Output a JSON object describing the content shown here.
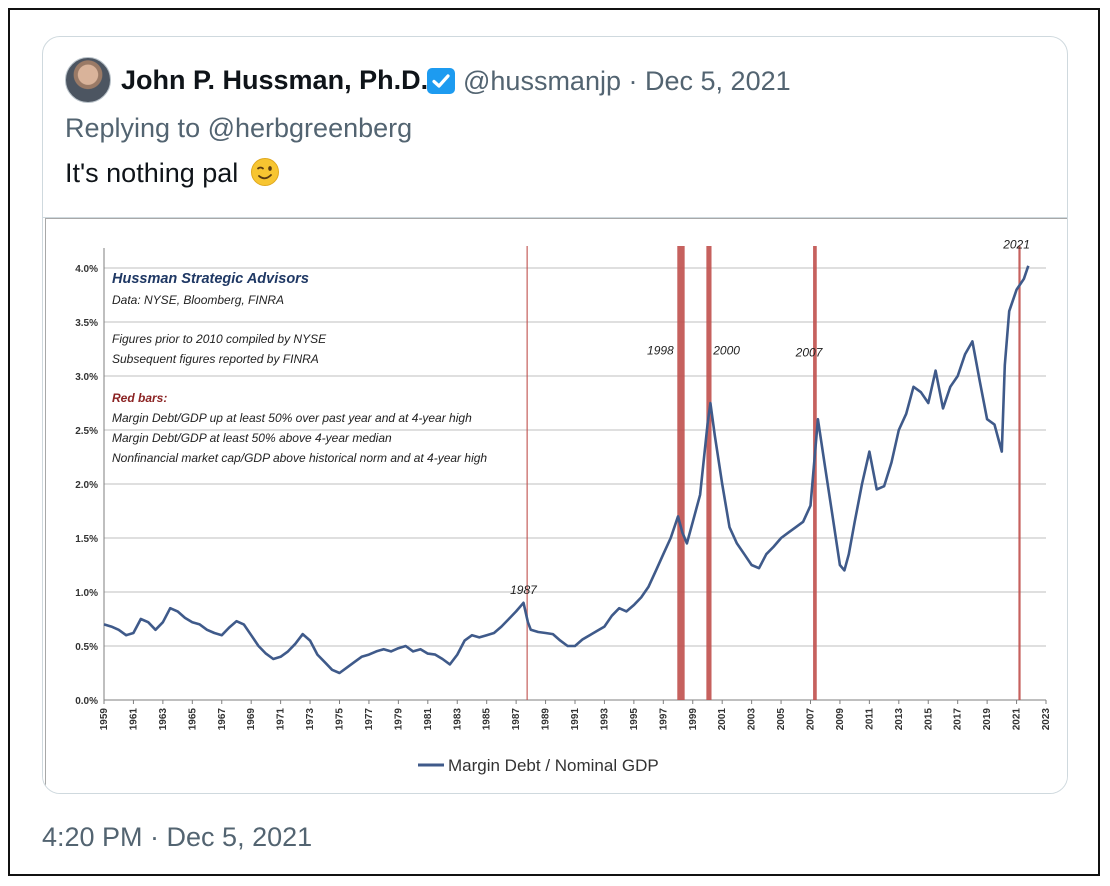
{
  "tweet": {
    "display_name": "John P. Hussman, Ph.D.",
    "handle": "@hussmanjp",
    "separator": "·",
    "date": "Dec 5, 2021",
    "replying_prefix": "Replying to ",
    "replying_to": "@herbgreenberg",
    "text": "It's nothing pal",
    "emoji": "winking-face-icon",
    "timestamp": "4:20 PM · Dec 5, 2021"
  },
  "colors": {
    "series": "#3f5a8a",
    "red_bars": "#c0504d",
    "note_title": "#1f3864",
    "red_heading": "#8b2323",
    "grid": "#bfbfbf"
  },
  "chart_data": {
    "type": "line",
    "title": "Hussman Strategic Advisors",
    "notes": [
      "Data: NYSE, Bloomberg, FINRA",
      "Figures prior to 2010 compiled by NYSE",
      "Subsequent figures reported by FINRA"
    ],
    "red_bars_heading": "Red bars:",
    "red_bars_criteria": [
      "Margin Debt/GDP up at least 50% over past year and at 4-year high",
      "Margin Debt/GDP at least 50% above 4-year median",
      "Nonfinancial market cap/GDP above historical norm and at 4-year high"
    ],
    "ylim": [
      0,
      4.0
    ],
    "y_ticks": [
      "0.0%",
      "0.5%",
      "1.0%",
      "1.5%",
      "2.0%",
      "2.5%",
      "3.0%",
      "3.5%",
      "4.0%"
    ],
    "xlim": [
      1959,
      2023
    ],
    "x_ticks": [
      "1959",
      "1961",
      "1963",
      "1965",
      "1967",
      "1969",
      "1971",
      "1973",
      "1975",
      "1977",
      "1979",
      "1981",
      "1983",
      "1985",
      "1987",
      "1989",
      "1991",
      "1993",
      "1995",
      "1997",
      "1999",
      "2001",
      "2003",
      "2005",
      "2007",
      "2009",
      "2011",
      "2013",
      "2015",
      "2017",
      "2019",
      "2021",
      "2023"
    ],
    "legend": "Margin Debt / Nominal GDP",
    "legend_position": "bottom-center",
    "grid": "horizontal",
    "annotations": [
      {
        "label": "1987",
        "x": 1987.5,
        "y": 0.98
      },
      {
        "label": "1998",
        "x": 1996.8,
        "y": 3.2
      },
      {
        "label": "2000",
        "x": 2001.3,
        "y": 3.2
      },
      {
        "label": "2007",
        "x": 2006.9,
        "y": 3.18
      },
      {
        "label": "2021",
        "x": 2021.0,
        "y": 4.18
      }
    ],
    "red_bars": [
      {
        "x": 1987.75,
        "width": 0.1
      },
      {
        "x": 1998.2,
        "width": 0.5
      },
      {
        "x": 2000.1,
        "width": 0.35
      },
      {
        "x": 2007.3,
        "width": 0.25
      },
      {
        "x": 2021.2,
        "width": 0.15
      }
    ],
    "series": [
      {
        "name": "Margin Debt / Nominal GDP",
        "x": [
          1959,
          1959.5,
          1960,
          1960.5,
          1961,
          1961.5,
          1962,
          1962.5,
          1963,
          1963.5,
          1964,
          1964.5,
          1965,
          1965.5,
          1966,
          1966.5,
          1967,
          1967.5,
          1968,
          1968.5,
          1969,
          1969.5,
          1970,
          1970.5,
          1971,
          1971.5,
          1972,
          1972.5,
          1973,
          1973.5,
          1974,
          1974.5,
          1975,
          1975.5,
          1976,
          1976.5,
          1977,
          1977.5,
          1978,
          1978.5,
          1979,
          1979.5,
          1980,
          1980.5,
          1981,
          1981.5,
          1982,
          1982.5,
          1983,
          1983.5,
          1984,
          1984.5,
          1985,
          1985.5,
          1986,
          1986.5,
          1987,
          1987.5,
          1987.8,
          1988,
          1988.5,
          1989,
          1989.5,
          1990,
          1990.5,
          1991,
          1991.5,
          1992,
          1992.5,
          1993,
          1993.5,
          1994,
          1994.5,
          1995,
          1995.5,
          1996,
          1996.5,
          1997,
          1997.5,
          1998,
          1998.3,
          1998.6,
          1999,
          1999.5,
          2000,
          2000.2,
          2000.5,
          2001,
          2001.5,
          2002,
          2002.5,
          2003,
          2003.5,
          2004,
          2004.5,
          2005,
          2005.5,
          2006,
          2006.5,
          2007,
          2007.5,
          2008,
          2008.5,
          2009,
          2009.3,
          2009.6,
          2010,
          2010.5,
          2011,
          2011.5,
          2012,
          2012.5,
          2013,
          2013.5,
          2014,
          2014.5,
          2015,
          2015.5,
          2016,
          2016.5,
          2017,
          2017.5,
          2018,
          2018.5,
          2019,
          2019.5,
          2020,
          2020.2,
          2020.5,
          2021,
          2021.5,
          2021.8
        ],
        "values": [
          0.7,
          0.68,
          0.65,
          0.6,
          0.62,
          0.75,
          0.72,
          0.65,
          0.72,
          0.85,
          0.82,
          0.76,
          0.72,
          0.7,
          0.65,
          0.62,
          0.6,
          0.67,
          0.73,
          0.7,
          0.6,
          0.5,
          0.43,
          0.38,
          0.4,
          0.45,
          0.52,
          0.61,
          0.55,
          0.42,
          0.35,
          0.28,
          0.25,
          0.3,
          0.35,
          0.4,
          0.42,
          0.45,
          0.47,
          0.45,
          0.48,
          0.5,
          0.45,
          0.47,
          0.43,
          0.42,
          0.38,
          0.33,
          0.42,
          0.55,
          0.6,
          0.58,
          0.6,
          0.62,
          0.68,
          0.75,
          0.82,
          0.9,
          0.72,
          0.65,
          0.63,
          0.62,
          0.61,
          0.55,
          0.5,
          0.5,
          0.56,
          0.6,
          0.64,
          0.68,
          0.78,
          0.85,
          0.82,
          0.88,
          0.95,
          1.05,
          1.2,
          1.35,
          1.5,
          1.7,
          1.55,
          1.45,
          1.65,
          1.9,
          2.55,
          2.75,
          2.45,
          2.0,
          1.6,
          1.45,
          1.35,
          1.25,
          1.22,
          1.35,
          1.42,
          1.5,
          1.55,
          1.6,
          1.65,
          1.8,
          2.6,
          2.15,
          1.7,
          1.25,
          1.2,
          1.35,
          1.65,
          2.0,
          2.3,
          1.95,
          1.98,
          2.2,
          2.5,
          2.65,
          2.9,
          2.85,
          2.75,
          3.05,
          2.7,
          2.9,
          3.0,
          3.2,
          3.32,
          2.95,
          2.6,
          2.55,
          2.3,
          3.1,
          3.6,
          3.8,
          3.9,
          4.02
        ]
      }
    ]
  }
}
